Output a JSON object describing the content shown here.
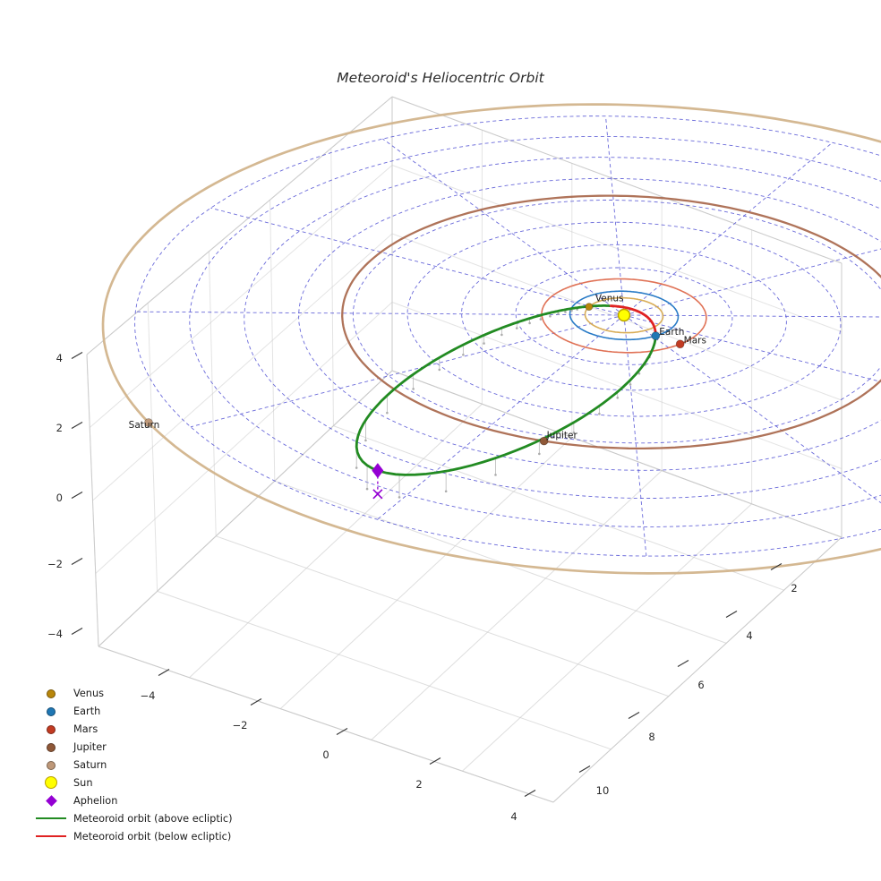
{
  "title": "Meteoroid's Heliocentric Orbit",
  "chart_data": {
    "type": "3d-orbit-plot",
    "title": "Meteoroid's Heliocentric Orbit",
    "background": "#ffffff",
    "view": {
      "projection": "perspective-approx",
      "elev_deg": 28,
      "azim_deg": -55
    },
    "axes": {
      "x_tick_labels": [
        "−4",
        "−2",
        "0",
        "2",
        "4"
      ],
      "y_tick_labels": [
        "2",
        "4",
        "6",
        "8",
        "10"
      ],
      "z_tick_labels": [
        "4",
        "2",
        "0",
        "−2",
        "−4"
      ],
      "box_color": "#c9c9c9",
      "tick_color": "#2b2b2b"
    },
    "polar_grid": {
      "circle_radii_au": [
        1,
        2,
        3,
        4,
        5,
        6,
        7,
        8,
        9
      ],
      "num_spokes": 12,
      "color": "#4040d0"
    },
    "sun": {
      "label": "Sun",
      "color": "#ffff00",
      "edge_color": "#b8a000"
    },
    "planets": [
      {
        "name": "Venus",
        "orbit_radius_au": 0.72,
        "position_deg": 178,
        "orbit_color": "#d7a94f",
        "marker_color": "#b8860b",
        "orbit_width": 1.6
      },
      {
        "name": "Earth",
        "orbit_radius_au": 1.0,
        "position_deg": 27,
        "orbit_color": "#2277c4",
        "marker_color": "#1f77b4",
        "orbit_width": 1.6
      },
      {
        "name": "Mars",
        "orbit_radius_au": 1.52,
        "position_deg": 20,
        "orbit_color": "#de6a4d",
        "marker_color": "#c23b22",
        "orbit_width": 1.6
      },
      {
        "name": "Jupiter",
        "orbit_radius_au": 5.2,
        "position_deg": 78,
        "orbit_color": "#ab6c50",
        "marker_color": "#8f5838",
        "orbit_width": 2.3
      },
      {
        "name": "Saturn",
        "orbit_radius_au": 9.58,
        "position_deg": 123,
        "orbit_color": "#d2b48c",
        "marker_color": "#be9879",
        "orbit_width": 2.7
      }
    ],
    "meteoroid": {
      "semi_major_axis_au": 4.298,
      "eccentricity": 0.9242,
      "inclination_deg": 5.4,
      "ascending_node_deg": 27,
      "arg_perihelion_deg": -113.8,
      "perihelion_au": 0.33,
      "aphelion_au": 8.27,
      "above_color": "#228b22",
      "below_color": "#e02222",
      "stem_color": "#b9b9b9",
      "aphelion_marker": {
        "label": "Aphelion",
        "color": "#9400d3"
      }
    },
    "legend": [
      {
        "marker": "dot",
        "color": "#b8860b",
        "label": "Venus"
      },
      {
        "marker": "dot",
        "color": "#1f77b4",
        "label": "Earth"
      },
      {
        "marker": "dot",
        "color": "#c23b22",
        "label": "Mars"
      },
      {
        "marker": "dot",
        "color": "#8f5838",
        "label": "Jupiter"
      },
      {
        "marker": "dot",
        "color": "#be9879",
        "label": "Saturn"
      },
      {
        "marker": "sun",
        "color": "#ffff00",
        "label": "Sun"
      },
      {
        "marker": "diamond",
        "color": "#9400d3",
        "label": "Aphelion"
      },
      {
        "marker": "line",
        "color": "#228b22",
        "label": "Meteoroid orbit (above ecliptic)"
      },
      {
        "marker": "line",
        "color": "#e02222",
        "label": "Meteoroid orbit (below ecliptic)"
      }
    ]
  }
}
